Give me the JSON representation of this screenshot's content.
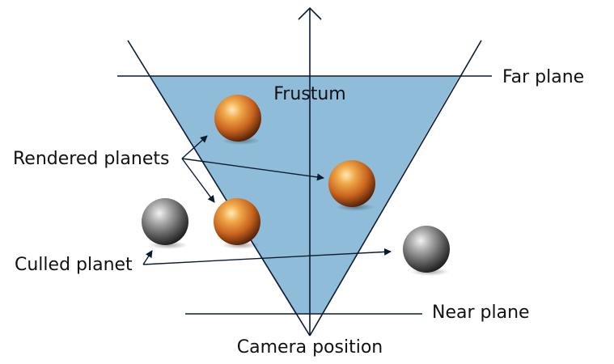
{
  "diagram": {
    "title": "Frustum",
    "labels": {
      "far_plane": "Far plane",
      "near_plane": "Near plane",
      "camera_position": "Camera position",
      "rendered_planets": "Rendered planets",
      "culled_planet": "Culled planet"
    },
    "colors": {
      "frustum_fill": "#8fbdd9",
      "line": "#0b1a33",
      "rendered_planet": "#c8641e",
      "culled_planet": "#8a8a8a"
    },
    "planets": [
      {
        "name": "planet-rendered-top",
        "state": "rendered"
      },
      {
        "name": "planet-rendered-right",
        "state": "rendered"
      },
      {
        "name": "planet-rendered-bottom",
        "state": "rendered"
      },
      {
        "name": "planet-culled-left",
        "state": "culled"
      },
      {
        "name": "planet-culled-right",
        "state": "culled"
      }
    ]
  }
}
